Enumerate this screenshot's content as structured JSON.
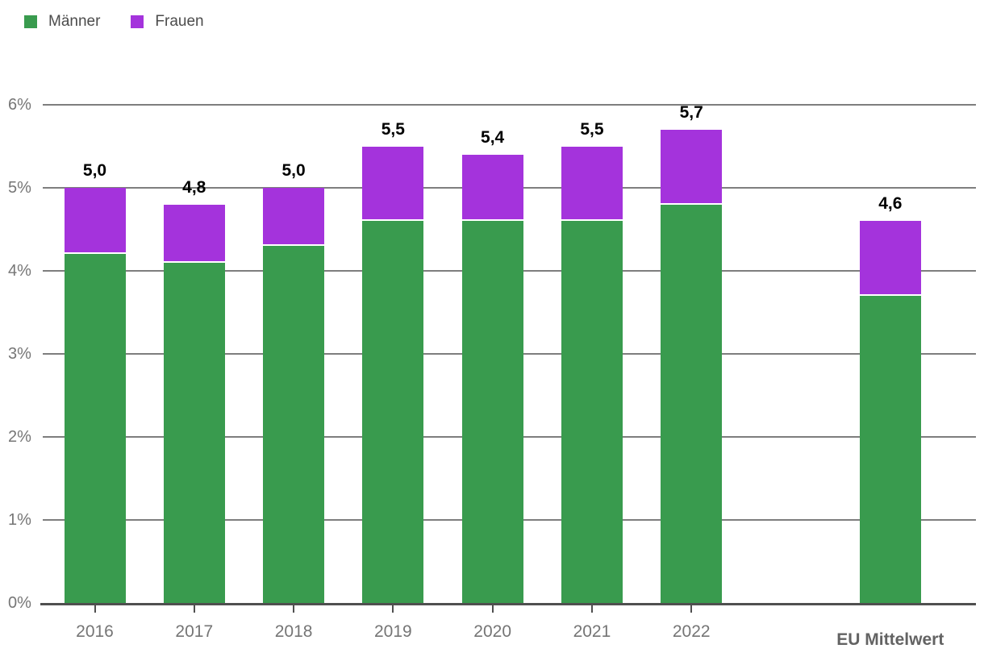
{
  "legend": {
    "items": [
      {
        "label": "Männer",
        "color": "#399b4e"
      },
      {
        "label": "Frauen",
        "color": "#a433dc"
      }
    ]
  },
  "chart_data": {
    "type": "bar",
    "stacked": true,
    "title": "",
    "xlabel": "",
    "ylabel": "",
    "categories": [
      "2016",
      "2017",
      "2018",
      "2019",
      "2020",
      "2021",
      "2022",
      "EU Mittelwert"
    ],
    "series": [
      {
        "name": "Männer",
        "color": "#399b4e",
        "values": [
          4.2,
          4.1,
          4.3,
          4.6,
          4.6,
          4.6,
          4.8,
          3.7
        ]
      },
      {
        "name": "Frauen",
        "color": "#a433dc",
        "values": [
          0.8,
          0.7,
          0.7,
          0.9,
          0.8,
          0.9,
          0.9,
          0.9
        ]
      }
    ],
    "totals": [
      5.0,
      4.8,
      5.0,
      5.5,
      5.4,
      5.5,
      5.7,
      4.6
    ],
    "total_labels": [
      "5,0",
      "4,8",
      "5,0",
      "5,5",
      "5,4",
      "5,5",
      "5,7",
      "4,6"
    ],
    "y_tick_labels": [
      "0%",
      "1%",
      "2%",
      "3%",
      "4%",
      "5%",
      "6%"
    ],
    "ylim": [
      0,
      6
    ],
    "grid": true,
    "legend_position": "top-left",
    "colors": {
      "grid": "#7e7e7e",
      "axis_line": "#4f4f4f",
      "axis_text": "#767676",
      "value_label_text": "#000000",
      "eu_label_text": "#636363"
    }
  }
}
